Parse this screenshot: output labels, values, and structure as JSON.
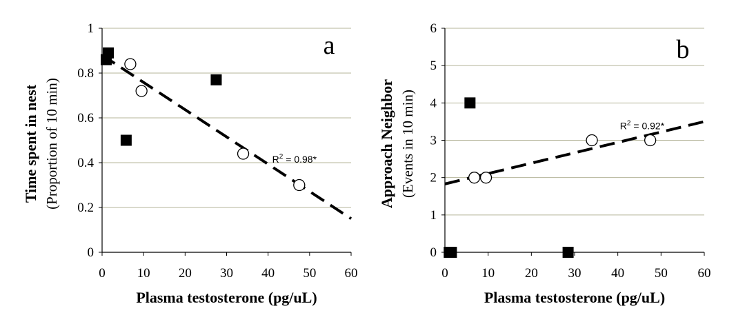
{
  "chart_data": [
    {
      "type": "scatter",
      "panel_label": "a",
      "xlabel": "Plasma testosterone (pg/uL)",
      "ylabel_line1": "Time spent in nest",
      "ylabel_line2": "(Proportion of 10 min)",
      "xlim": [
        0,
        60
      ],
      "ylim": [
        0,
        1
      ],
      "xticks": [
        "0",
        "10",
        "20",
        "30",
        "40",
        "50",
        "60"
      ],
      "yticks": [
        "0",
        "0.2",
        "0.4",
        "0.6",
        "0.8",
        "1"
      ],
      "grid": "horizontal",
      "series": [
        {
          "marker": "filled-square",
          "points": [
            [
              1,
              0.86
            ],
            [
              1.5,
              0.89
            ],
            [
              5.8,
              0.5
            ],
            [
              27.5,
              0.77
            ]
          ]
        },
        {
          "marker": "open-circle",
          "points": [
            [
              6.8,
              0.84
            ],
            [
              9.5,
              0.72
            ],
            [
              34,
              0.44
            ],
            [
              47.5,
              0.3
            ]
          ]
        }
      ],
      "trendline": {
        "style": "dashed",
        "from": [
          0,
          0.88
        ],
        "to": [
          60,
          0.15
        ]
      },
      "annotation": {
        "text": "R",
        "sup": "2",
        "rest": " = 0.98*",
        "x": 41,
        "y": 0.4
      }
    },
    {
      "type": "scatter",
      "panel_label": "b",
      "xlabel": "Plasma testosterone (pg/uL)",
      "ylabel_line1": "Approach Neighbor",
      "ylabel_line2": "(Events in 10 min)",
      "xlim": [
        0,
        60
      ],
      "ylim": [
        0,
        6
      ],
      "xticks": [
        "0",
        "10",
        "20",
        "30",
        "40",
        "50",
        "60"
      ],
      "yticks": [
        "0",
        "1",
        "2",
        "3",
        "4",
        "5",
        "6"
      ],
      "grid": "horizontal",
      "series": [
        {
          "marker": "filled-square",
          "points": [
            [
              1,
              0
            ],
            [
              1.5,
              0
            ],
            [
              5.8,
              4
            ],
            [
              28.5,
              0
            ]
          ]
        },
        {
          "marker": "open-circle",
          "points": [
            [
              6.8,
              2
            ],
            [
              9.5,
              2
            ],
            [
              34,
              3
            ],
            [
              47.5,
              3
            ]
          ]
        }
      ],
      "trendline": {
        "style": "dashed",
        "from": [
          0,
          1.83
        ],
        "to": [
          60,
          3.5
        ]
      },
      "annotation": {
        "text": "R",
        "sup": "2",
        "rest": " = 0.92*",
        "x": 40.5,
        "y": 3.3
      }
    }
  ]
}
